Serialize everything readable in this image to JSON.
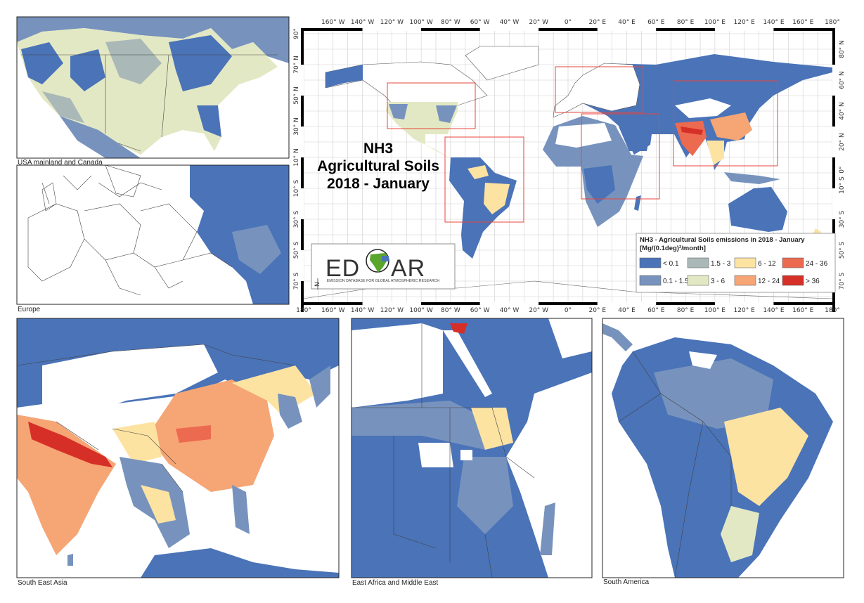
{
  "main_map": {
    "title_lines": [
      "NH3",
      "Agricultural Soils",
      "2018 - January"
    ],
    "top_lon_labels": [
      "160° W",
      "140° W",
      "120° W",
      "100° W",
      "80° W",
      "60° W",
      "40° W",
      "20° W",
      "0°",
      "20° E",
      "40° E",
      "60° E",
      "80° E",
      "100° E",
      "120° E",
      "140° E",
      "160° E",
      "180°"
    ],
    "bottom_lon_labels": [
      "180°",
      "160° W",
      "140° W",
      "120° W",
      "100° W",
      "80° W",
      "60° W",
      "40° W",
      "20° W",
      "0°",
      "20° E",
      "40° E",
      "60° E",
      "80° E",
      "100° E",
      "120° E",
      "140° E",
      "160° E",
      "180°"
    ],
    "left_lat_labels": [
      "90°",
      "70° N",
      "50° N",
      "30° N",
      "10° N",
      "10° S",
      "30° S",
      "50° S",
      "70° S"
    ],
    "right_lat_labels": [
      "80° N",
      "60° N",
      "40° N",
      "20° N",
      "0°",
      "10° S",
      "30° S",
      "50° S",
      "70° S"
    ],
    "north_arrow": "N"
  },
  "legend": {
    "title": "NH3 - Agricultural Soils emissions in 2018 - January",
    "unit": "[Mg/(0.1deg)²/month]",
    "classes": [
      {
        "label": "< 0.1",
        "color": "#4a73b8"
      },
      {
        "label": "0.1 - 1.5",
        "color": "#7793bd"
      },
      {
        "label": "1.5 - 3",
        "color": "#aab8b8"
      },
      {
        "label": "3 - 6",
        "color": "#e3e8c4"
      },
      {
        "label": "6 - 12",
        "color": "#fde3a2"
      },
      {
        "label": "12 - 24",
        "color": "#f6a574"
      },
      {
        "label": "24 - 36",
        "color": "#ec6a50"
      },
      {
        "label": "> 36",
        "color": "#d62f27"
      }
    ]
  },
  "logo": {
    "text": "EDGAR",
    "subtitle": "EMISSION DATABASE FOR GLOBAL ATMOSPHERIC RESEARCH"
  },
  "insets": [
    {
      "label": "USA mainland and Canada"
    },
    {
      "label": "Europe"
    },
    {
      "label": "South East Asia"
    },
    {
      "label": "East Africa and Middle East"
    },
    {
      "label": "South America"
    }
  ],
  "colors": {
    "highlight_box": "#e8453c"
  }
}
